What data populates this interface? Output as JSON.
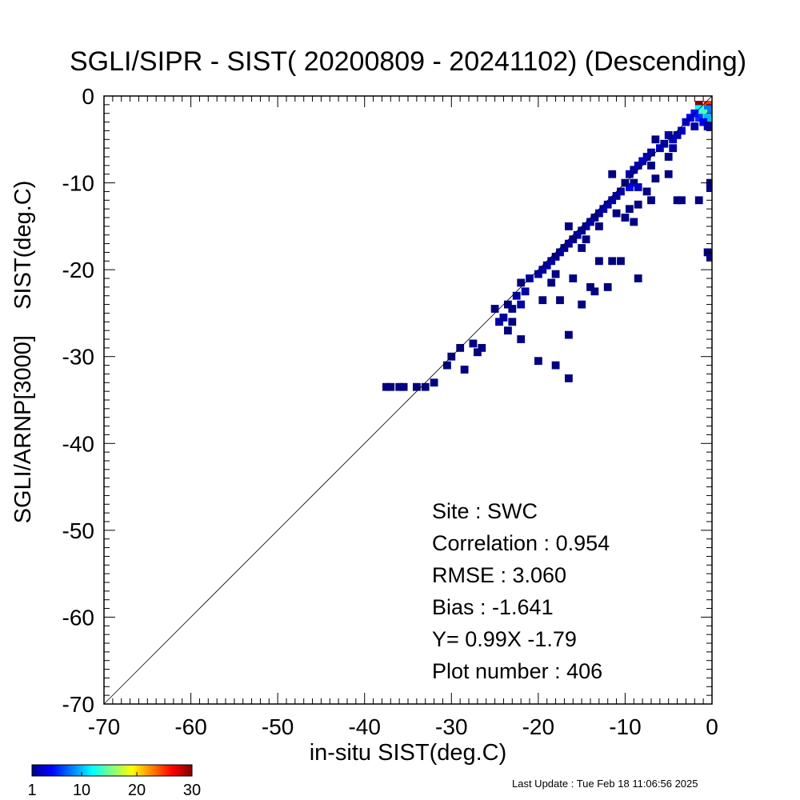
{
  "chart_data": {
    "type": "heatmap",
    "title": "SGLI/SIPR - SIST( 20200809 - 20241102) (Descending)",
    "xlabel": "in-situ SIST(deg.C)",
    "ylabel": "SGLI/ARNP[3000]    SIST(deg.C)",
    "xlim": [
      -70,
      0
    ],
    "ylim": [
      -70,
      0
    ],
    "x_ticks": [
      "-70",
      "-60",
      "-50",
      "-40",
      "-30",
      "-20",
      "-10",
      "0"
    ],
    "y_ticks": [
      "-70",
      "-60",
      "-50",
      "-40",
      "-30",
      "-20",
      "-10",
      "0"
    ],
    "x_tick_values": [
      -70,
      -60,
      -50,
      -40,
      -30,
      -20,
      -10,
      0
    ],
    "y_tick_values": [
      -70,
      -60,
      -50,
      -40,
      -30,
      -20,
      -10,
      0
    ],
    "one_to_one_line": true,
    "colorbar": {
      "min": 1,
      "max": 30,
      "ticks": [
        "1",
        "10",
        "20",
        "30"
      ],
      "tick_values": [
        1,
        10,
        20,
        30
      ]
    },
    "stats": {
      "site": "Site : SWC",
      "correlation": "Correlation :    0.954",
      "rmse": "RMSE :    3.060",
      "bias": "Bias :   -1.641",
      "regression": "Y=   0.99X  -1.79",
      "plot_number": "Plot number :       406"
    },
    "cells": [
      [
        -1.5,
        -1.0,
        30
      ],
      [
        -0.5,
        -1.0,
        25
      ],
      [
        -1.5,
        -1.5,
        12
      ],
      [
        -0.5,
        -1.5,
        8
      ],
      [
        -1.0,
        -2.0,
        14
      ],
      [
        -0.5,
        -2.5,
        10
      ],
      [
        -1.5,
        -2.5,
        6
      ],
      [
        -2.0,
        -2.0,
        5
      ],
      [
        -2.5,
        -2.5,
        4
      ],
      [
        -3.0,
        -3.0,
        3
      ],
      [
        -1.0,
        -3.0,
        4
      ],
      [
        -0.5,
        -3.5,
        2
      ],
      [
        -2.0,
        -3.5,
        2
      ],
      [
        -3.5,
        -4.0,
        3
      ],
      [
        -4.0,
        -4.5,
        2
      ],
      [
        -4.5,
        -5.0,
        3
      ],
      [
        -5.0,
        -4.5,
        2
      ],
      [
        -5.5,
        -5.5,
        2
      ],
      [
        -4.5,
        -6.0,
        2
      ],
      [
        -6.0,
        -6.0,
        3
      ],
      [
        -6.5,
        -5.0,
        1
      ],
      [
        -7.0,
        -6.5,
        2
      ],
      [
        -7.5,
        -7.0,
        2
      ],
      [
        -5.0,
        -7.0,
        1
      ],
      [
        -8.0,
        -7.5,
        3
      ],
      [
        -8.5,
        -8.0,
        2
      ],
      [
        -9.0,
        -8.5,
        2
      ],
      [
        -7.0,
        -8.0,
        1
      ],
      [
        -9.5,
        -9.0,
        2
      ],
      [
        -9.0,
        -10.0,
        1
      ],
      [
        -8.5,
        -10.5,
        3
      ],
      [
        -9.5,
        -10.5,
        4
      ],
      [
        -10.0,
        -10.0,
        1
      ],
      [
        -10.5,
        -11.0,
        2
      ],
      [
        -11.0,
        -11.5,
        2
      ],
      [
        -7.5,
        -11.0,
        1
      ],
      [
        -7.0,
        -12.0,
        1
      ],
      [
        -8.5,
        -12.5,
        1
      ],
      [
        -4.0,
        -12.0,
        1
      ],
      [
        -3.5,
        -12.0,
        1
      ],
      [
        -1.5,
        -12.0,
        1
      ],
      [
        -0.2,
        -10.0,
        1
      ],
      [
        -0.2,
        -10.5,
        1
      ],
      [
        -5.0,
        -9.0,
        1
      ],
      [
        -6.5,
        -9.5,
        1
      ],
      [
        -11.5,
        -9.0,
        1
      ],
      [
        -11.5,
        -12.0,
        2
      ],
      [
        -12.0,
        -12.5,
        2
      ],
      [
        -12.5,
        -13.0,
        2
      ],
      [
        -11.0,
        -13.5,
        1
      ],
      [
        -13.0,
        -13.5,
        2
      ],
      [
        -13.5,
        -14.0,
        1
      ],
      [
        -14.0,
        -14.5,
        2
      ],
      [
        -9.5,
        -13.0,
        1
      ],
      [
        -10.0,
        -14.0,
        1
      ],
      [
        -14.5,
        -15.0,
        2
      ],
      [
        -15.0,
        -15.5,
        1
      ],
      [
        -15.5,
        -16.0,
        2
      ],
      [
        -16.0,
        -16.5,
        1
      ],
      [
        -16.5,
        -17.0,
        2
      ],
      [
        -17.0,
        -17.5,
        1
      ],
      [
        -17.5,
        -18.0,
        2
      ],
      [
        -18.0,
        -18.5,
        1
      ],
      [
        -18.5,
        -19.0,
        2
      ],
      [
        -14.5,
        -16.5,
        1
      ],
      [
        -15.0,
        -17.5,
        1
      ],
      [
        -16.5,
        -15.0,
        1
      ],
      [
        -9.0,
        -14.5,
        1
      ],
      [
        -13.0,
        -15.0,
        1
      ],
      [
        -19.0,
        -19.5,
        2
      ],
      [
        -19.5,
        -20.0,
        2
      ],
      [
        -20.0,
        -20.5,
        2
      ],
      [
        -21.0,
        -21.0,
        2
      ],
      [
        -22.0,
        -21.5,
        1
      ],
      [
        -21.5,
        -22.5,
        2
      ],
      [
        -22.5,
        -23.0,
        2
      ],
      [
        -22.0,
        -24.0,
        2
      ],
      [
        -23.0,
        -24.5,
        1
      ],
      [
        -18.5,
        -21.5,
        1
      ],
      [
        -18.0,
        -20.5,
        1
      ],
      [
        -19.5,
        -23.5,
        1
      ],
      [
        -17.5,
        -23.5,
        1
      ],
      [
        -15.0,
        -24.0,
        1
      ],
      [
        -13.5,
        -22.5,
        1
      ],
      [
        -14.0,
        -22.0,
        1
      ],
      [
        -12.0,
        -22.0,
        1
      ],
      [
        -13.0,
        -19.0,
        1
      ],
      [
        -11.5,
        -19.0,
        1
      ],
      [
        -10.5,
        -19.0,
        1
      ],
      [
        -8.5,
        -21.0,
        1
      ],
      [
        -16.0,
        -21.0,
        1
      ],
      [
        -23.5,
        -24.0,
        1
      ],
      [
        -24.0,
        -25.5,
        2
      ],
      [
        -24.5,
        -26.0,
        2
      ],
      [
        -25.0,
        -24.5,
        1
      ],
      [
        -23.5,
        -27.0,
        1
      ],
      [
        -22.0,
        -28.0,
        1
      ],
      [
        -23.0,
        -26.0,
        1
      ],
      [
        -16.5,
        -27.5,
        1
      ],
      [
        -26.5,
        -29.0,
        1
      ],
      [
        -27.0,
        -29.5,
        1
      ],
      [
        -27.5,
        -28.5,
        1
      ],
      [
        -29.0,
        -29.0,
        1
      ],
      [
        -30.0,
        -30.0,
        1
      ],
      [
        -28.5,
        -31.5,
        1
      ],
      [
        -30.5,
        -31.0,
        1
      ],
      [
        -20.0,
        -30.5,
        1
      ],
      [
        -18.0,
        -31.0,
        1
      ],
      [
        -16.5,
        -32.5,
        1
      ],
      [
        -32.0,
        -33.0,
        1
      ],
      [
        -33.0,
        -33.5,
        1
      ],
      [
        -34.0,
        -33.5,
        1
      ],
      [
        -35.5,
        -33.5,
        1
      ],
      [
        -36.0,
        -33.5,
        1
      ],
      [
        -37.0,
        -33.5,
        1
      ],
      [
        -37.5,
        -33.5,
        1
      ],
      [
        -0.5,
        -18.0,
        1
      ],
      [
        -0.2,
        -18.5,
        1
      ]
    ]
  },
  "footer": {
    "last_update": "Last Update : Tue Feb 18 11:06:56 2025"
  }
}
